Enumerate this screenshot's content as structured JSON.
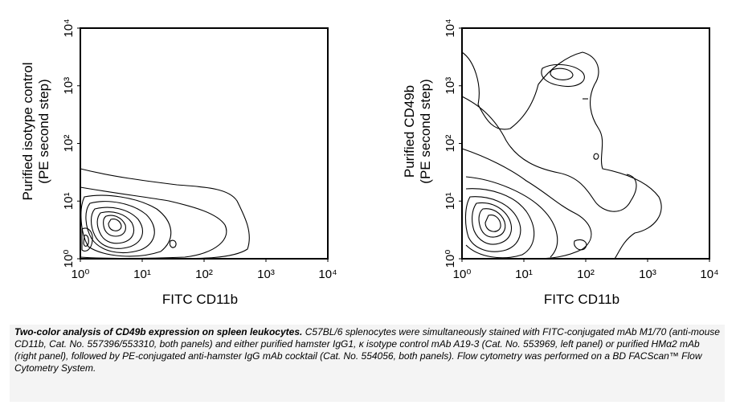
{
  "chart_data": [
    {
      "type": "contour",
      "xlabel": "FITC CD11b",
      "ylabel": [
        "Purified isotype control",
        "(PE second step)"
      ],
      "xlim": [
        1,
        10000
      ],
      "ylim": [
        1,
        10000
      ],
      "log": true,
      "xticks": [
        {
          "value": 1,
          "label": "10⁰"
        },
        {
          "value": 10,
          "label": "10¹"
        },
        {
          "value": 100,
          "label": "10²"
        },
        {
          "value": 1000,
          "label": "10³"
        },
        {
          "value": 10000,
          "label": "10⁴"
        }
      ],
      "yticks": [
        {
          "value": 1,
          "label": "10⁰"
        },
        {
          "value": 10,
          "label": "10¹"
        },
        {
          "value": 100,
          "label": "10²"
        },
        {
          "value": 1000,
          "label": "10³"
        },
        {
          "value": 10000,
          "label": "10⁴"
        }
      ]
    },
    {
      "type": "contour",
      "xlabel": "FITC CD11b",
      "ylabel": [
        "Purified CD49b",
        "(PE second step)"
      ],
      "xlim": [
        1,
        10000
      ],
      "ylim": [
        1,
        10000
      ],
      "log": true,
      "xticks": [
        {
          "value": 1,
          "label": "10⁰"
        },
        {
          "value": 10,
          "label": "10¹"
        },
        {
          "value": 100,
          "label": "10²"
        },
        {
          "value": 1000,
          "label": "10³"
        },
        {
          "value": 10000,
          "label": "10⁴"
        }
      ],
      "yticks": [
        {
          "value": 1,
          "label": "10⁰"
        },
        {
          "value": 10,
          "label": "10¹"
        },
        {
          "value": 100,
          "label": "10²"
        },
        {
          "value": 1000,
          "label": "10³"
        },
        {
          "value": 10000,
          "label": "10⁴"
        }
      ]
    }
  ],
  "caption": {
    "title": "Two-color analysis of CD49b expression on spleen leukocytes.",
    "text": "C57BL/6 splenocytes were simultaneously stained with FITC-conjugated mAb M1/70 (anti-mouse CD11b, Cat. No. 557396/553310, both panels) and either purified hamster IgG1, κ isotype control mAb A19-3 (Cat. No. 553969, left panel) or purified HMα2 mAb (right panel), followed by PE-conjugated anti-hamster IgG mAb cocktail (Cat. No. 554056, both panels).  Flow cytometry was performed on a BD FACScan™ Flow Cytometry System."
  }
}
